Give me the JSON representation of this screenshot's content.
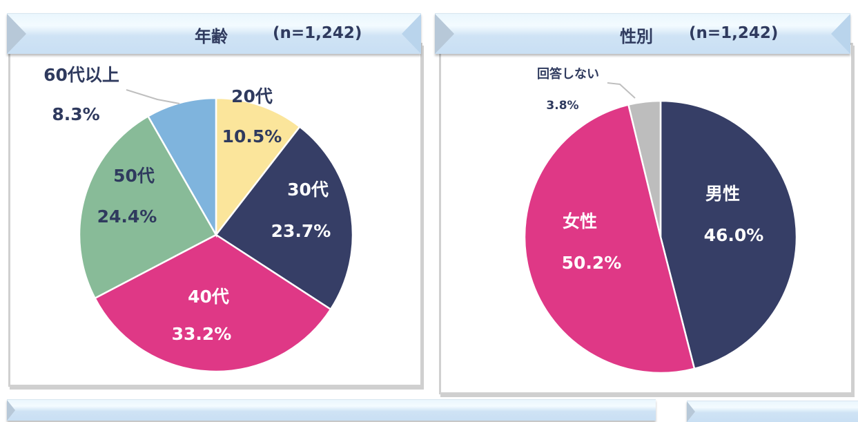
{
  "panels": {
    "age": {
      "title": "年齢",
      "n_label": "(n=1,242)"
    },
    "gender": {
      "title": "性別",
      "n_label": "(n=1,242)"
    }
  },
  "chart_data": [
    {
      "type": "pie",
      "title": "年齢",
      "subtitle": "(n=1,242)",
      "categories": [
        "20代",
        "30代",
        "40代",
        "50代",
        "60代以上"
      ],
      "values": [
        10.5,
        23.7,
        33.2,
        24.4,
        8.3
      ],
      "value_labels": [
        "10.5%",
        "23.7%",
        "33.2%",
        "24.4%",
        "8.3%"
      ],
      "colors": [
        "#fbe59b",
        "#363e66",
        "#df3886",
        "#88bb98",
        "#7fb4dd"
      ],
      "label_colors": [
        "#2f3a5e",
        "#ffffff",
        "#ffffff",
        "#2f3a5e",
        "#2f3a5e"
      ],
      "start_angle_deg": 0,
      "direction": "clockwise",
      "legend": "none (data labels)"
    },
    {
      "type": "pie",
      "title": "性別",
      "subtitle": "(n=1,242)",
      "categories": [
        "男性",
        "女性",
        "回答しない"
      ],
      "values": [
        46.0,
        50.2,
        3.8
      ],
      "value_labels": [
        "46.0%",
        "50.2%",
        "3.8%"
      ],
      "colors": [
        "#363e66",
        "#df3886",
        "#bdbdbd"
      ],
      "label_colors": [
        "#ffffff",
        "#ffffff",
        "#2f3a5e"
      ],
      "start_angle_deg": 0,
      "direction": "clockwise",
      "legend": "none (data labels)"
    }
  ]
}
